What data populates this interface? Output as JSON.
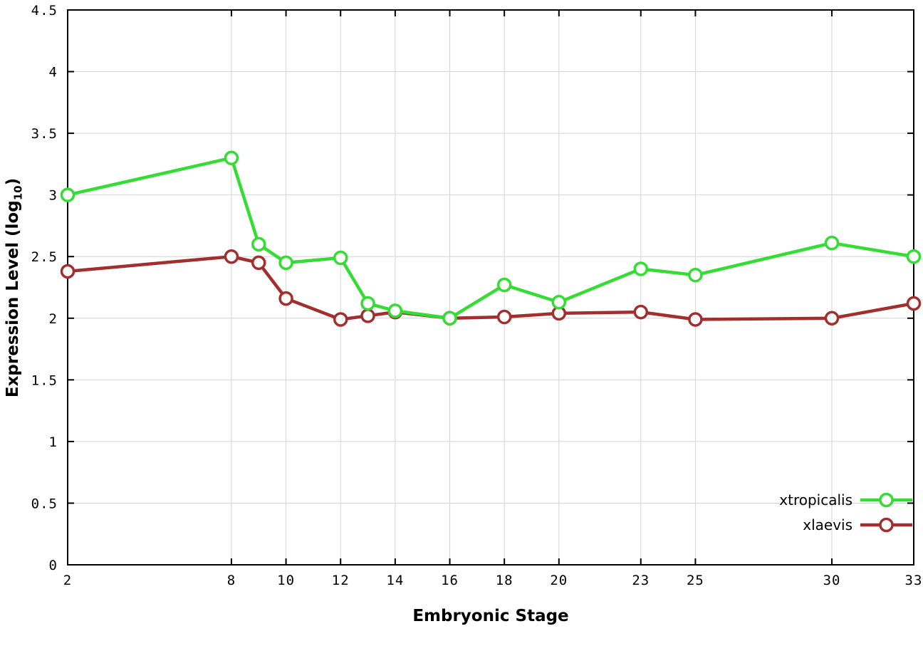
{
  "figure": {
    "background": "#ffffff",
    "xlabel": "Embryonic Stage",
    "ylabel_prefix": "Expression Level (log",
    "ylabel_sub": "10",
    "ylabel_suffix": ")"
  },
  "chart_data": {
    "type": "line",
    "title": "",
    "xlabel": "Embryonic Stage",
    "ylabel": "Expression Level (log10)",
    "x": [
      2,
      8,
      9,
      10,
      12,
      13,
      14,
      16,
      18,
      20,
      23,
      25,
      30,
      33
    ],
    "series": [
      {
        "name": "xtropicalis",
        "color": "#33dd33",
        "marker": "open-circle",
        "values": [
          3.0,
          3.3,
          2.6,
          2.45,
          2.49,
          2.12,
          2.06,
          2.0,
          2.27,
          2.13,
          2.4,
          2.35,
          2.61,
          2.5
        ]
      },
      {
        "name": "xlaevis",
        "color": "#a32e2e",
        "marker": "open-circle",
        "values": [
          2.38,
          2.5,
          2.45,
          2.16,
          1.99,
          2.02,
          2.05,
          2.0,
          2.01,
          2.04,
          2.05,
          1.99,
          2.0,
          2.12
        ]
      }
    ],
    "xlim": [
      2,
      33
    ],
    "ylim": [
      0,
      4.5
    ],
    "x_ticks": [
      2,
      8,
      10,
      12,
      14,
      16,
      18,
      20,
      23,
      25,
      30,
      33
    ],
    "y_ticks": [
      0,
      0.5,
      1,
      1.5,
      2,
      2.5,
      3,
      3.5,
      4,
      4.5
    ],
    "grid": true,
    "legend_position": "inside bottom-right"
  }
}
